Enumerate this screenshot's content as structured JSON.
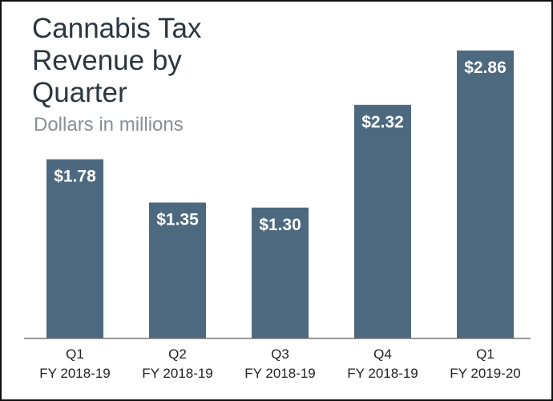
{
  "chart_data": {
    "type": "bar",
    "title": "Cannabis Tax Revenue by Quarter",
    "subtitle": "Dollars in millions",
    "categories": [
      [
        "Q1",
        "FY 2018-19"
      ],
      [
        "Q2",
        "FY 2018-19"
      ],
      [
        "Q3",
        "FY 2018-19"
      ],
      [
        "Q4",
        "FY 2018-19"
      ],
      [
        "Q1",
        "FY 2019-20"
      ]
    ],
    "values": [
      1.78,
      1.35,
      1.3,
      2.32,
      2.86
    ],
    "data_labels": [
      "$1.78",
      "$1.35",
      "$1.30",
      "$2.32",
      "$2.86"
    ],
    "ylim": [
      0,
      2.86
    ],
    "grid": false,
    "bar_color": "#4d6980",
    "label_color": "#ffffff"
  }
}
